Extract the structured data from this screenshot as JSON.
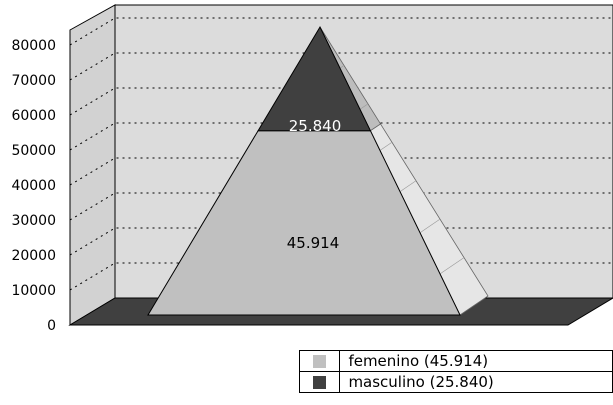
{
  "chart_data": {
    "type": "pyramid",
    "ylim": [
      0,
      80000
    ],
    "yticks": [
      "0",
      "10000",
      "20000",
      "30000",
      "40000",
      "50000",
      "60000",
      "70000",
      "80000"
    ],
    "grid": true,
    "legend_position": "bottom-right",
    "series": [
      {
        "name": "femenino (45.914)",
        "value": 45914,
        "label": "45.914",
        "color": "#c0c0c0"
      },
      {
        "name": "masculino (25.840)",
        "value": 25840,
        "label": "25.840",
        "color": "#404040"
      }
    ]
  },
  "legend": {
    "items": [
      {
        "label": "femenino  (45.914)",
        "color": "#c0c0c0"
      },
      {
        "label": "masculino (25.840)",
        "color": "#404040"
      }
    ]
  }
}
